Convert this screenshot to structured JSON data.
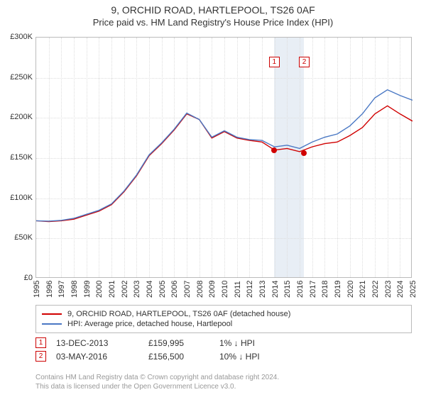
{
  "title": {
    "line1": "9, ORCHID ROAD, HARTLEPOOL, TS26 0AF",
    "line2": "Price paid vs. HM Land Registry's House Price Index (HPI)"
  },
  "chart": {
    "type": "line",
    "background_color": "#ffffff",
    "border_color": "#bbbbbb",
    "grid_color": "#dddddd",
    "y": {
      "min": 0,
      "max": 300000,
      "step": 50000,
      "ticks": [
        "£0",
        "£50K",
        "£100K",
        "£150K",
        "£200K",
        "£250K",
        "£300K"
      ],
      "label_fontsize": 11
    },
    "x": {
      "min": 1995,
      "max": 2025,
      "step": 1,
      "tick_labels": [
        "1995",
        "1996",
        "1997",
        "1998",
        "1999",
        "2000",
        "2001",
        "2002",
        "2003",
        "2004",
        "2005",
        "2006",
        "2007",
        "2008",
        "2009",
        "2010",
        "2011",
        "2012",
        "2013",
        "2014",
        "2015",
        "2016",
        "2017",
        "2018",
        "2019",
        "2020",
        "2021",
        "2022",
        "2023",
        "2024",
        "2025"
      ],
      "label_fontsize": 11
    },
    "highlight_band": {
      "from_year": 2013.95,
      "to_year": 2016.34,
      "color": "#e8eef5"
    },
    "series": [
      {
        "id": "property",
        "label": "9, ORCHID ROAD, HARTLEPOOL, TS26 0AF (detached house)",
        "color": "#d00000",
        "line_width": 1.4,
        "points": [
          [
            1995,
            72000
          ],
          [
            1996,
            71000
          ],
          [
            1997,
            72000
          ],
          [
            1998,
            74000
          ],
          [
            1999,
            79000
          ],
          [
            2000,
            84000
          ],
          [
            2001,
            92000
          ],
          [
            2002,
            108000
          ],
          [
            2003,
            128000
          ],
          [
            2004,
            153000
          ],
          [
            2005,
            168000
          ],
          [
            2006,
            185000
          ],
          [
            2007,
            205000
          ],
          [
            2008,
            198000
          ],
          [
            2009,
            175000
          ],
          [
            2010,
            183000
          ],
          [
            2011,
            175000
          ],
          [
            2012,
            172000
          ],
          [
            2013,
            170000
          ],
          [
            2014,
            160000
          ],
          [
            2015,
            162000
          ],
          [
            2016,
            158000
          ],
          [
            2017,
            164000
          ],
          [
            2018,
            168000
          ],
          [
            2019,
            170000
          ],
          [
            2020,
            178000
          ],
          [
            2021,
            188000
          ],
          [
            2022,
            205000
          ],
          [
            2023,
            215000
          ],
          [
            2024,
            205000
          ],
          [
            2025,
            196000
          ]
        ]
      },
      {
        "id": "hpi",
        "label": "HPI: Average price, detached house, Hartlepool",
        "color": "#4a78c4",
        "line_width": 1.4,
        "points": [
          [
            1995,
            72000
          ],
          [
            1996,
            71500
          ],
          [
            1997,
            72500
          ],
          [
            1998,
            75000
          ],
          [
            1999,
            80000
          ],
          [
            2000,
            85000
          ],
          [
            2001,
            93000
          ],
          [
            2002,
            109000
          ],
          [
            2003,
            129000
          ],
          [
            2004,
            154000
          ],
          [
            2005,
            169000
          ],
          [
            2006,
            186000
          ],
          [
            2007,
            206000
          ],
          [
            2008,
            198000
          ],
          [
            2009,
            176000
          ],
          [
            2010,
            184000
          ],
          [
            2011,
            176000
          ],
          [
            2012,
            173000
          ],
          [
            2013,
            172000
          ],
          [
            2014,
            164000
          ],
          [
            2015,
            166000
          ],
          [
            2016,
            162000
          ],
          [
            2017,
            170000
          ],
          [
            2018,
            176000
          ],
          [
            2019,
            180000
          ],
          [
            2020,
            190000
          ],
          [
            2021,
            205000
          ],
          [
            2022,
            225000
          ],
          [
            2023,
            235000
          ],
          [
            2024,
            228000
          ],
          [
            2025,
            222000
          ]
        ]
      }
    ],
    "markers": [
      {
        "n": "1",
        "year": 2013.95,
        "price": 159995,
        "badge_y": 270000
      },
      {
        "n": "2",
        "year": 2016.34,
        "price": 156500,
        "badge_y": 270000
      }
    ],
    "marker_dot_color": "#d00000"
  },
  "transactions": [
    {
      "n": "1",
      "date": "13-DEC-2013",
      "price": "£159,995",
      "diff": "1% ↓ HPI"
    },
    {
      "n": "2",
      "date": "03-MAY-2016",
      "price": "£156,500",
      "diff": "10% ↓ HPI"
    }
  ],
  "footer": {
    "line1": "Contains HM Land Registry data © Crown copyright and database right 2024.",
    "line2": "This data is licensed under the Open Government Licence v3.0."
  }
}
